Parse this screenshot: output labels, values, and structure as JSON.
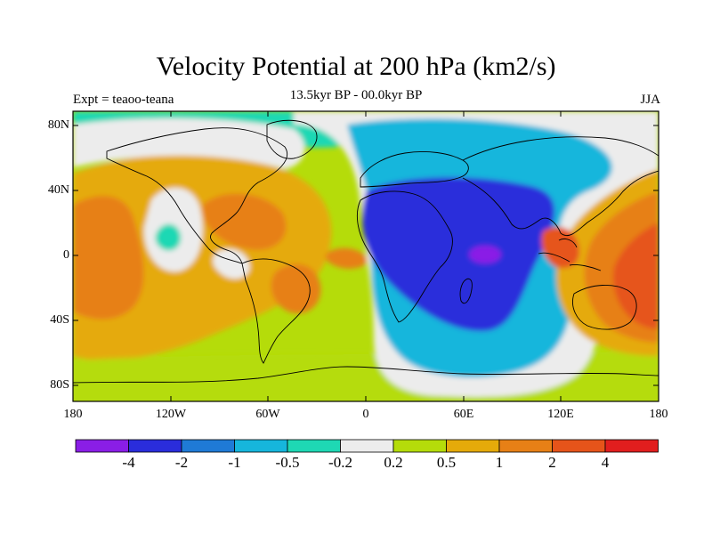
{
  "header": {
    "title": "Velocity Potential at 200 hPa (km2/s)",
    "subtitle": "13.5kyr BP - 00.0kyr BP",
    "left_label": "Expt = teaoo-teana",
    "right_label": "JJA"
  },
  "map": {
    "variable": "Velocity Potential at 200 hPa",
    "units": "km2/s",
    "projection": "cylindrical equidistant",
    "lon_range": [
      -180,
      180
    ],
    "lat_range": [
      -90,
      90
    ],
    "lat_ticks": [
      "80N",
      "40N",
      "0",
      "40S",
      "80S"
    ],
    "lon_ticks": [
      "180",
      "120W",
      "60W",
      "0",
      "60E",
      "120E",
      "180"
    ],
    "features": [
      {
        "name": "divergence-minimum",
        "lon": 75,
        "lat": 0,
        "level": "< -4"
      },
      {
        "name": "convergence-maximum",
        "lon": 150,
        "lat": -20,
        "level": "2 to 4"
      },
      {
        "name": "east-pacific-high",
        "lon": -160,
        "lat": -20,
        "level": "1 to 2"
      }
    ]
  },
  "colorbar": {
    "colors": [
      "#8a1ee6",
      "#2a2ddb",
      "#1f7ad6",
      "#16b6dc",
      "#1ed8b4",
      "#ececec",
      "#b5dc0a",
      "#e5aa0a",
      "#e78016",
      "#e6541a",
      "#e11e1e"
    ],
    "labels": [
      "-4",
      "-2",
      "-1",
      "-0.5",
      "-0.2",
      "0.2",
      "0.5",
      "1",
      "2",
      "4"
    ]
  },
  "colors": {
    "background": "#ffffff",
    "coastline": "#000000"
  }
}
